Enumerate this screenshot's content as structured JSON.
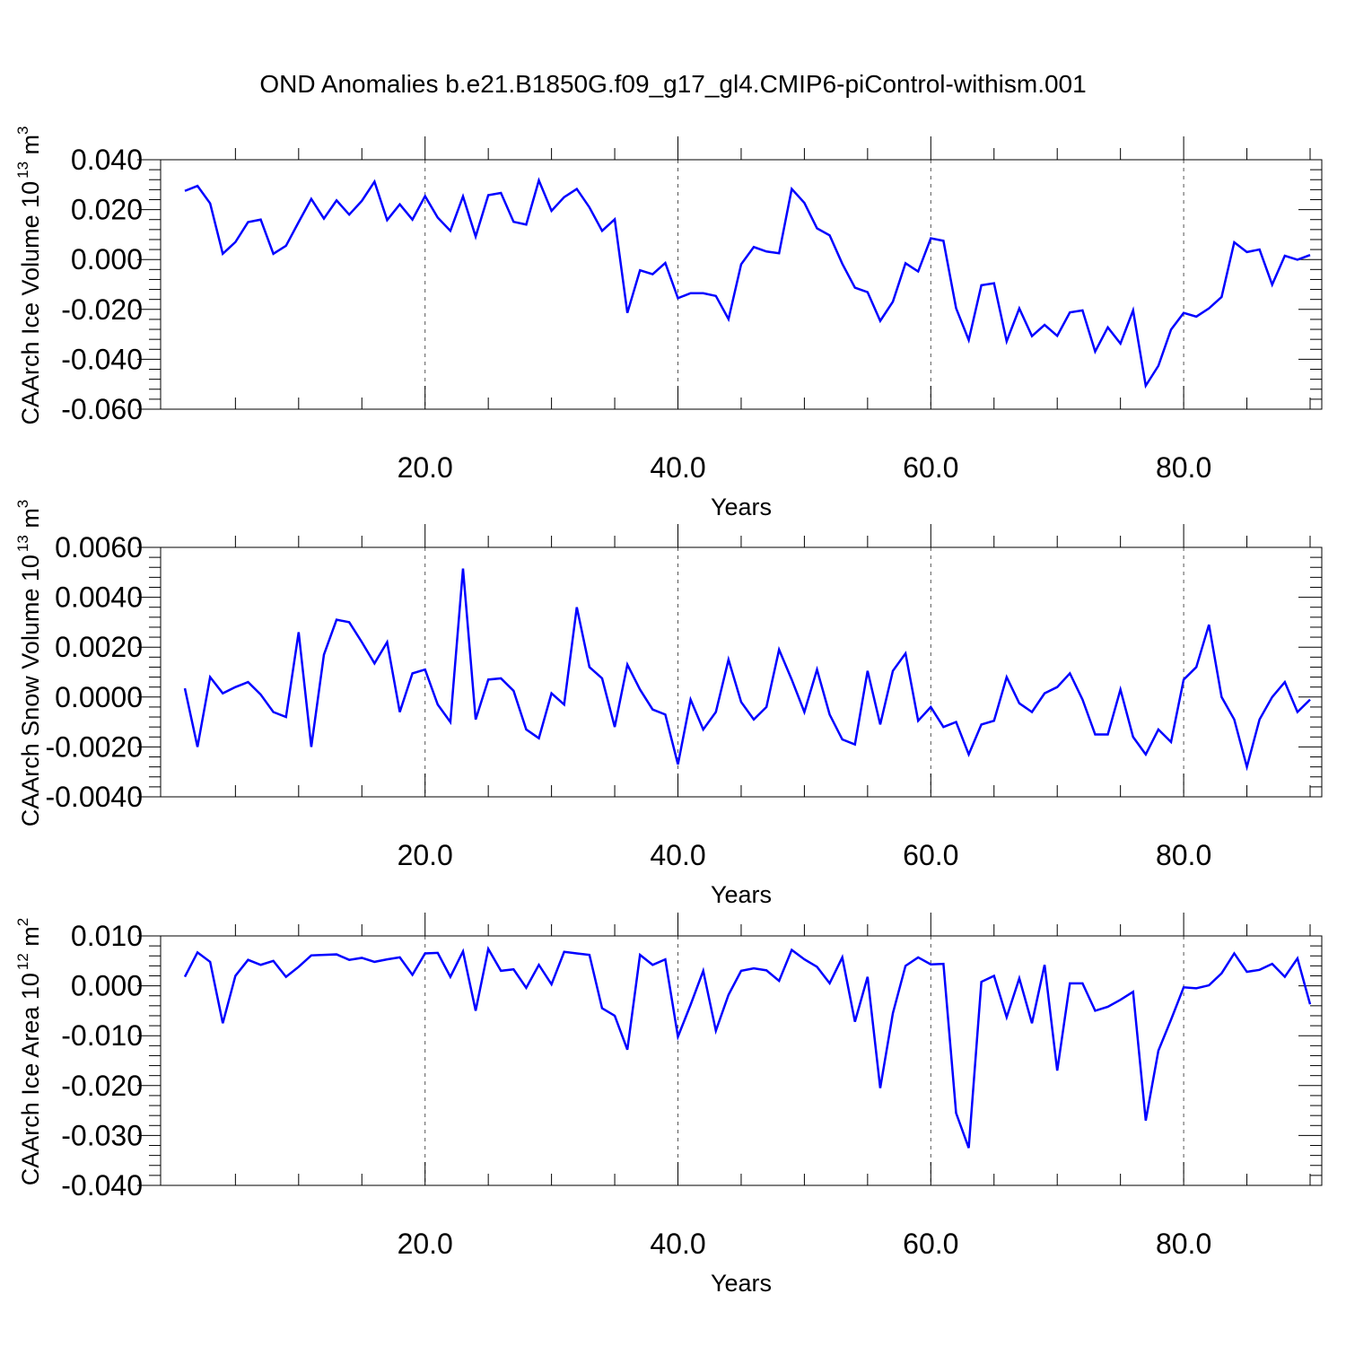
{
  "title": "OND Anomalies b.e21.B1850G.f09_g17_gl4.CMIP6-piControl-withism.001",
  "colors": {
    "line": "#0000ff",
    "axis": "#000000",
    "grid": "#000000"
  },
  "chart_data": [
    {
      "type": "line",
      "ylabel": "CAArch Ice Volume",
      "yunit_base": "10",
      "yunit_exp": "13",
      "yunit_tail": " m",
      "yunit_tail_exp": "3",
      "xlabel": "Years",
      "xlim": [
        1,
        90
      ],
      "ylim": [
        -0.06,
        0.04
      ],
      "yticks": [
        -0.06,
        -0.04,
        -0.02,
        0.0,
        0.02,
        0.04
      ],
      "ytick_labels": [
        "-0.060",
        "-0.040",
        "-0.020",
        "0.000",
        "0.020",
        "0.040"
      ],
      "xticks": [
        20,
        40,
        60,
        80
      ],
      "xtick_labels": [
        "20.0",
        "40.0",
        "60.0",
        "80.0"
      ],
      "grid": "dashed vertical at x ticks",
      "x_start": 1,
      "values": [
        0.0275,
        0.0295,
        0.0225,
        0.0023,
        0.007,
        0.015,
        0.016,
        0.0023,
        0.0055,
        0.015,
        0.0243,
        0.0164,
        0.0237,
        0.018,
        0.0235,
        0.0312,
        0.0158,
        0.0221,
        0.016,
        0.0254,
        0.0168,
        0.0115,
        0.0253,
        0.0092,
        0.0258,
        0.0267,
        0.0151,
        0.014,
        0.0317,
        0.0195,
        0.025,
        0.0283,
        0.0209,
        0.0115,
        0.0161,
        -0.0214,
        -0.0043,
        -0.0059,
        -0.0014,
        -0.0155,
        -0.0135,
        -0.0135,
        -0.0146,
        -0.0239,
        -0.0019,
        0.005,
        0.0032,
        0.0025,
        0.0283,
        0.0227,
        0.0125,
        0.0097,
        -0.0017,
        -0.0113,
        -0.0131,
        -0.0246,
        -0.0169,
        -0.0015,
        -0.0048,
        0.0085,
        0.0075,
        -0.0195,
        -0.0323,
        -0.0103,
        -0.0095,
        -0.0328,
        -0.0196,
        -0.0307,
        -0.0262,
        -0.0306,
        -0.0212,
        -0.0204,
        -0.0369,
        -0.0272,
        -0.0337,
        -0.0204,
        -0.0506,
        -0.0426,
        -0.0281,
        -0.0214,
        -0.0229,
        -0.0196,
        -0.015,
        0.0069,
        0.003,
        0.004,
        -0.0101,
        0.0015,
        -0.0001,
        0.0018
      ]
    },
    {
      "type": "line",
      "ylabel": "CAArch Snow Volume",
      "yunit_base": "10",
      "yunit_exp": "13",
      "yunit_tail": " m",
      "yunit_tail_exp": "3",
      "xlabel": "Years",
      "xlim": [
        1,
        90
      ],
      "ylim": [
        -0.004,
        0.006
      ],
      "yticks": [
        -0.004,
        -0.002,
        0.0,
        0.002,
        0.004,
        0.006
      ],
      "ytick_labels": [
        "-0.0040",
        "-0.0020",
        "0.0000",
        "0.0020",
        "0.0040",
        "0.0060"
      ],
      "xticks": [
        20,
        40,
        60,
        80
      ],
      "xtick_labels": [
        "20.0",
        "40.0",
        "60.0",
        "80.0"
      ],
      "grid": "dashed vertical at x ticks",
      "x_start": 1,
      "values": [
        0.00035,
        -0.002,
        0.0008,
        0.00015,
        0.0004,
        0.0006,
        0.0001,
        -0.0006,
        -0.0008,
        0.0026,
        -0.002,
        0.0017,
        0.0031,
        0.003,
        0.0022,
        0.00135,
        0.0022,
        -0.0006,
        0.00095,
        0.0011,
        -0.0003,
        -0.001,
        0.00515,
        -0.0009,
        0.0007,
        0.00075,
        0.00025,
        -0.0013,
        -0.00165,
        0.00015,
        -0.0003,
        0.0036,
        0.0012,
        0.00075,
        -0.0012,
        0.0013,
        0.0003,
        -0.0005,
        -0.0007,
        -0.0027,
        -0.0001,
        -0.0013,
        -0.0006,
        0.0015,
        -0.0002,
        -0.0009,
        -0.0004,
        0.0019,
        0.0007,
        -0.0006,
        0.0011,
        -0.0007,
        -0.0017,
        -0.0019,
        0.00105,
        -0.0011,
        0.00105,
        0.00175,
        -0.00095,
        -0.0004,
        -0.0012,
        -0.001,
        -0.0023,
        -0.0011,
        -0.00095,
        0.0008,
        -0.00025,
        -0.0006,
        0.00015,
        0.0004,
        0.00095,
        -0.0001,
        -0.0015,
        -0.0015,
        0.0003,
        -0.0016,
        -0.0023,
        -0.0013,
        -0.0018,
        0.0007,
        0.0012,
        0.0029,
        0.0,
        -0.0009,
        -0.0028,
        -0.0009,
        0.0,
        0.0006,
        -0.0006,
        -0.0001
      ]
    },
    {
      "type": "line",
      "ylabel": "CAArch Ice Area",
      "yunit_base": "10",
      "yunit_exp": "12",
      "yunit_tail": " m",
      "yunit_tail_exp": "2",
      "xlabel": "Years",
      "xlim": [
        1,
        90
      ],
      "ylim": [
        -0.04,
        0.01
      ],
      "yticks": [
        -0.04,
        -0.03,
        -0.02,
        -0.01,
        0.0,
        0.01
      ],
      "ytick_labels": [
        "-0.040",
        "-0.030",
        "-0.020",
        "-0.010",
        "0.000",
        "0.010"
      ],
      "xticks": [
        20,
        40,
        60,
        80
      ],
      "xtick_labels": [
        "20.0",
        "40.0",
        "60.0",
        "80.0"
      ],
      "grid": "dashed vertical at x ticks",
      "x_start": 1,
      "values": [
        0.0018,
        0.0067,
        0.0048,
        -0.0075,
        0.002,
        0.0052,
        0.0042,
        0.005,
        0.0018,
        0.0038,
        0.0061,
        0.0062,
        0.0063,
        0.0052,
        0.0056,
        0.0048,
        0.0053,
        0.0057,
        0.0022,
        0.0065,
        0.0066,
        0.0018,
        0.0069,
        -0.005,
        0.0074,
        0.003,
        0.0033,
        -0.0004,
        0.0042,
        0.0003,
        0.0068,
        0.0065,
        0.0062,
        -0.0045,
        -0.006,
        -0.0128,
        0.0062,
        0.0042,
        0.0053,
        -0.0102,
        -0.0038,
        0.003,
        -0.009,
        -0.0018,
        0.003,
        0.0035,
        0.0031,
        0.001,
        0.0072,
        0.0053,
        0.0038,
        0.0005,
        0.0057,
        -0.0072,
        0.0018,
        -0.0205,
        -0.0055,
        0.004,
        0.0057,
        0.0043,
        0.0044,
        -0.0255,
        -0.0325,
        0.0008,
        0.002,
        -0.0063,
        0.0015,
        -0.0075,
        0.0042,
        -0.017,
        0.0005,
        0.0005,
        -0.005,
        -0.0042,
        -0.0028,
        -0.0012,
        -0.027,
        -0.013,
        -0.0068,
        -0.0003,
        -0.0005,
        0.0001,
        0.0025,
        0.0065,
        0.0028,
        0.0032,
        0.0044,
        0.0018,
        0.0055,
        -0.0037
      ]
    }
  ]
}
